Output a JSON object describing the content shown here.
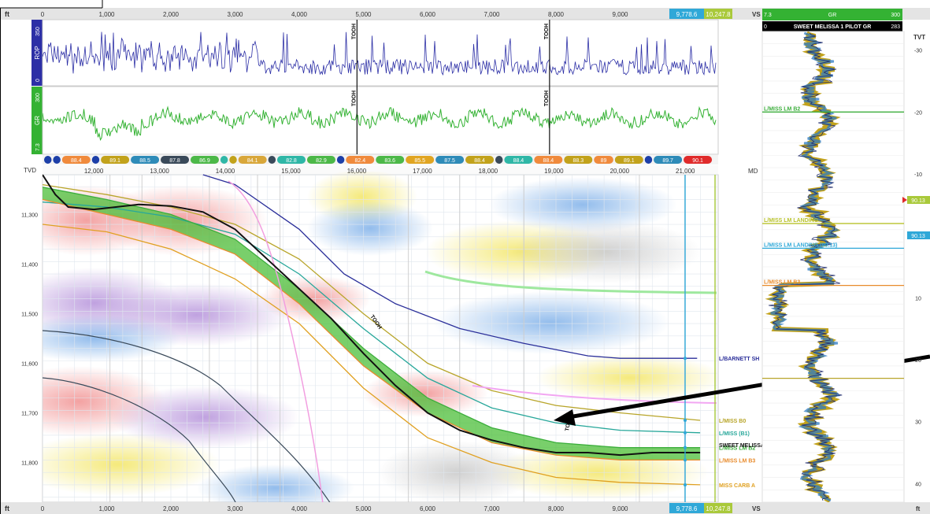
{
  "axes": {
    "vs_unit": "ft",
    "vs_ticks": [
      "0",
      "1,000",
      "2,000",
      "3,000",
      "4,000",
      "5,000",
      "6,000",
      "7,000",
      "8,000",
      "9,000"
    ],
    "vs_tick_values": [
      0,
      1000,
      2000,
      3000,
      4000,
      5000,
      6000,
      7000,
      8000,
      9000
    ],
    "vs_label": "VS",
    "vs_marker_blue": "9,778.6",
    "vs_marker_green": "10,247.8",
    "vs_max_visible": 10500,
    "md_label": "MD",
    "md_ticks": [
      "12,000",
      "13,000",
      "14,000",
      "15,000",
      "16,000",
      "17,000",
      "18,000",
      "19,000",
      "20,000",
      "21,000"
    ],
    "md_tick_values": [
      12000,
      13000,
      14000,
      15000,
      16000,
      17000,
      18000,
      19000,
      20000,
      21000
    ],
    "md_range": [
      11220,
      21500
    ],
    "tvd_label": "TVD",
    "tvd_ticks": [
      "11,300",
      "11,400",
      "11,500",
      "11,600",
      "11,700",
      "11,800"
    ],
    "tvd_tick_values": [
      11300,
      11400,
      11500,
      11600,
      11700,
      11800
    ],
    "tvd_range": [
      11220,
      11880
    ],
    "tvt_label": "TVT",
    "tvt_ticks": [
      "-30",
      "-20",
      "-10",
      "10",
      "20",
      "30",
      "40"
    ],
    "tvt_tick_values": [
      -30,
      -20,
      -10,
      10,
      20,
      30,
      40
    ],
    "tvt_range": [
      -33,
      43
    ]
  },
  "rop_track": {
    "label": "ROP",
    "min": "0",
    "max": "350",
    "color": "#2c2fa6"
  },
  "gr_track": {
    "label": "GR",
    "min": "7.3",
    "max": "300",
    "color": "#34b233"
  },
  "tooh": {
    "label": "TOOH",
    "vs": [
      4900,
      7900
    ]
  },
  "dip_chips": [
    {
      "t": "",
      "c": "#1d3fa8"
    },
    {
      "t": "",
      "c": "#1d3fa8"
    },
    {
      "t": "88.4",
      "c": "#f08a3c"
    },
    {
      "t": "",
      "c": "#1d3fa8"
    },
    {
      "t": "89.1",
      "c": "#c2a21b"
    },
    {
      "t": "88.5",
      "c": "#2e8bb8"
    },
    {
      "t": "87.8",
      "c": "#3a4a5a"
    },
    {
      "t": "86.9",
      "c": "#4cb848"
    },
    {
      "t": "",
      "c": "#2fb7a7"
    },
    {
      "t": "",
      "c": "#c2a21b"
    },
    {
      "t": "84.1",
      "c": "#d9a73a"
    },
    {
      "t": "",
      "c": "#3a4a5a"
    },
    {
      "t": "82.8",
      "c": "#2fb7a7"
    },
    {
      "t": "82.9",
      "c": "#4cb848"
    },
    {
      "t": "",
      "c": "#1d3fa8"
    },
    {
      "t": "82.4",
      "c": "#f08a3c"
    },
    {
      "t": "83.6",
      "c": "#4cb848"
    },
    {
      "t": "85.5",
      "c": "#e1a521"
    },
    {
      "t": "87.5",
      "c": "#2e8bb8"
    },
    {
      "t": "88.4",
      "c": "#c2a21b"
    },
    {
      "t": "",
      "c": "#3a4a5a"
    },
    {
      "t": "88.4",
      "c": "#2fb7a7"
    },
    {
      "t": "88.4",
      "c": "#f08a3c"
    },
    {
      "t": "88.3",
      "c": "#c2a21b"
    },
    {
      "t": "89",
      "c": "#f08a3c"
    },
    {
      "t": "89.1",
      "c": "#c2a21b"
    },
    {
      "t": "",
      "c": "#1d3fa8"
    },
    {
      "t": "89.7",
      "c": "#2e8bb8"
    },
    {
      "t": "90.1",
      "c": "#e02b2b"
    }
  ],
  "formations": [
    {
      "name": "L/BARNETT SH",
      "color": "#2b2f9a",
      "vs": [
        2500,
        3000,
        4000,
        4700,
        5500,
        6500,
        7500,
        8500,
        9000,
        10200
      ],
      "tvd": [
        11220,
        11240,
        11330,
        11420,
        11480,
        11530,
        11560,
        11585,
        11590,
        11590
      ]
    },
    {
      "name": "L/MISS B0",
      "color": "#b8a52a",
      "vs": [
        0,
        1000,
        2000,
        3000,
        4000,
        5000,
        6000,
        7000,
        8000,
        9000,
        10247
      ],
      "tvd": [
        11240,
        11260,
        11285,
        11320,
        11390,
        11500,
        11600,
        11655,
        11685,
        11700,
        11715
      ]
    },
    {
      "name": "L/MISS (B1)",
      "color": "#27a79a",
      "vs": [
        0,
        1000,
        2000,
        3000,
        4000,
        5000,
        6000,
        7000,
        8000,
        9000,
        10247
      ],
      "tvd": [
        11275,
        11285,
        11305,
        11340,
        11420,
        11530,
        11630,
        11690,
        11720,
        11735,
        11740
      ]
    },
    {
      "name": "L/MISS LM B2",
      "color": "#3cae3c",
      "vs": [
        0,
        1000,
        2000,
        3000,
        4000,
        5000,
        6000,
        7000,
        8000,
        9000,
        10247
      ],
      "tvd": [
        11245,
        11270,
        11300,
        11350,
        11450,
        11570,
        11670,
        11730,
        11760,
        11770,
        11770
      ]
    },
    {
      "name": "L/MISS LM B3",
      "color": "#e88b2c",
      "vs": [
        0,
        1000,
        2000,
        3000,
        4000,
        5000,
        6000,
        7000,
        8000,
        9000,
        10247
      ],
      "tvd": [
        11270,
        11300,
        11330,
        11380,
        11480,
        11605,
        11700,
        11760,
        11785,
        11795,
        11795
      ]
    },
    {
      "name": "MISS CARB A",
      "color": "#e0a020",
      "vs": [
        0,
        1000,
        2000,
        3000,
        4000,
        5000,
        6000,
        7000,
        8000,
        9000,
        10247
      ],
      "tvd": [
        11320,
        11335,
        11370,
        11430,
        11520,
        11650,
        11750,
        11800,
        11830,
        11840,
        11845
      ]
    }
  ],
  "well_path": {
    "name": "SWEET MELISSA 1",
    "vs": [
      0,
      200,
      400,
      800,
      1500,
      2000,
      2500,
      3000,
      3500,
      4000,
      4500,
      5000,
      5500,
      6000,
      6500,
      7000,
      7500,
      8000,
      8500,
      9000,
      9500,
      10247
    ],
    "tvd": [
      11220,
      11260,
      11285,
      11290,
      11280,
      11283,
      11295,
      11330,
      11390,
      11450,
      11510,
      11580,
      11645,
      11700,
      11735,
      11755,
      11770,
      11780,
      11780,
      11785,
      11780,
      11780
    ]
  },
  "gr_log": {
    "title": "GR",
    "min": "7.3",
    "max": "300",
    "offset_label_min": "0",
    "offset_label": "SWEET MELISSA 1 PILOT GR",
    "offset_label_max": "283",
    "markers": [
      {
        "name": "L/MISS LM B2",
        "tvt": -20,
        "color": "#3cae3c"
      },
      {
        "name": "L/MISS LM LANDING",
        "tvt": -2,
        "color": "#b8c22a"
      },
      {
        "name": "L/MISS LM LANDING (90.13)",
        "tvt": 2,
        "color": "#2fa8d8"
      },
      {
        "name": "L/MISS LM B3",
        "tvt": 8,
        "color": "#e88b2c"
      },
      {
        "name": "",
        "tvt": 23,
        "color": "#b8a52a"
      }
    ],
    "landing_value": "90.13",
    "unit": "ft"
  },
  "colors": {
    "vs_marker_blue": "#2fa8d8",
    "vs_marker_green": "#a9c93a",
    "band": "#4cbf3a"
  }
}
